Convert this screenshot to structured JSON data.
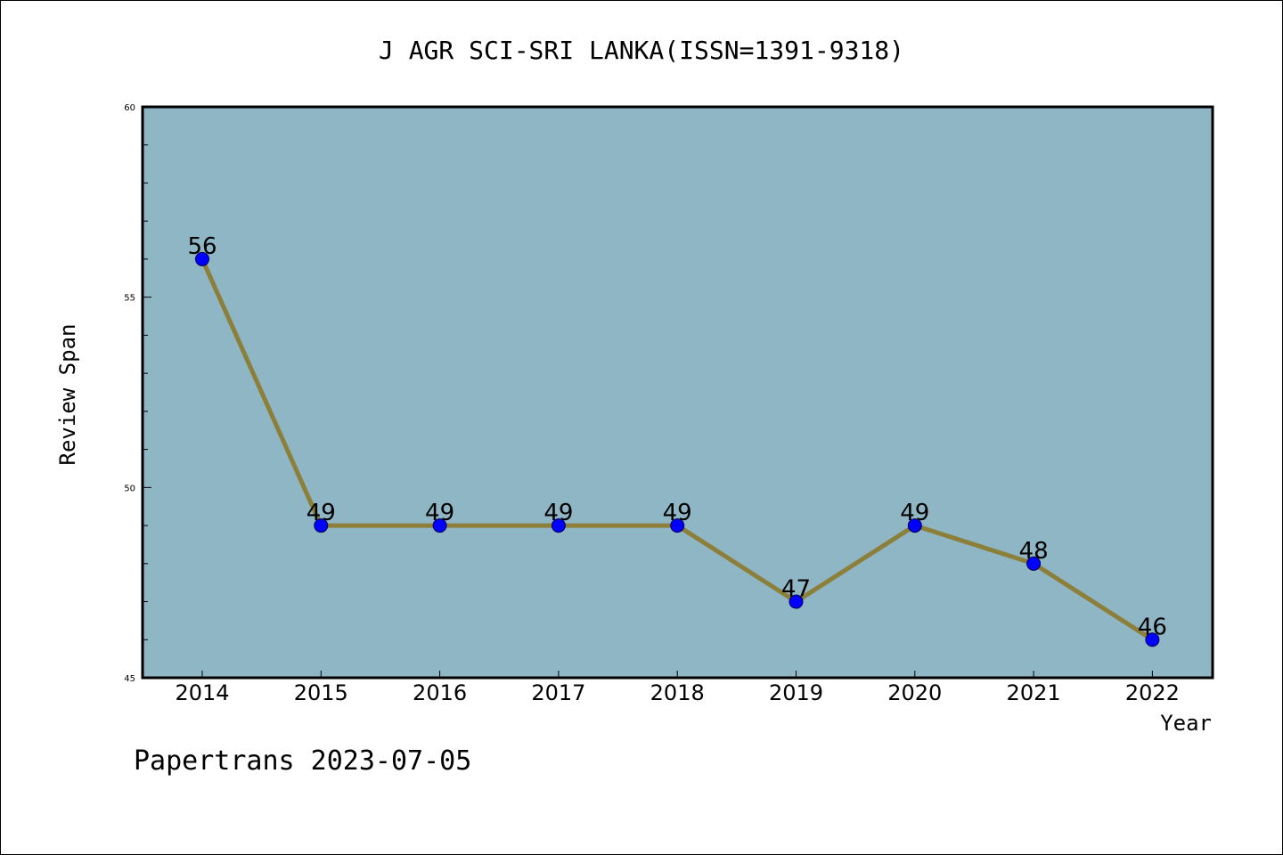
{
  "chart_data": {
    "type": "line",
    "title": "J AGR SCI-SRI LANKA(ISSN=1391-9318)",
    "xlabel": "Year",
    "ylabel": "Review Span",
    "categories": [
      "2014",
      "2015",
      "2016",
      "2017",
      "2018",
      "2019",
      "2020",
      "2021",
      "2022"
    ],
    "series": [
      {
        "values": [
          56,
          49,
          49,
          49,
          49,
          47,
          49,
          48,
          46
        ]
      }
    ],
    "ylim": [
      45,
      60
    ],
    "yticks": [
      45,
      50,
      55,
      60
    ],
    "grid": false,
    "legend": "none",
    "colors": {
      "plot_background": "#8fb6c5",
      "line": "#8c7f3a",
      "marker": "#0000ff"
    }
  },
  "footer": "Papertrans 2023-07-05"
}
